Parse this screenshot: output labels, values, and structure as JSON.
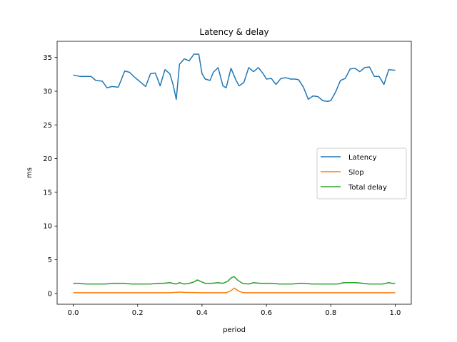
{
  "chart_data": {
    "type": "line",
    "title": "Latency & delay",
    "xlabel": "period",
    "ylabel": "ms",
    "xlim": [
      -0.05,
      1.05
    ],
    "ylim": [
      -1.6,
      37.4
    ],
    "xticks": [
      0.0,
      0.2,
      0.4,
      0.6,
      0.8,
      1.0
    ],
    "xtick_labels": [
      "0.0",
      "0.2",
      "0.4",
      "0.6",
      "0.8",
      "1.0"
    ],
    "yticks": [
      0,
      5,
      10,
      15,
      20,
      25,
      30,
      35
    ],
    "ytick_labels": [
      "0",
      "5",
      "10",
      "15",
      "20",
      "25",
      "30",
      "35"
    ],
    "grid": false,
    "legend_position": "center-right",
    "series": [
      {
        "name": "Latency",
        "color": "#1f77b4",
        "x": [
          0.0,
          0.02,
          0.04,
          0.055,
          0.07,
          0.09,
          0.105,
          0.12,
          0.14,
          0.16,
          0.175,
          0.19,
          0.21,
          0.225,
          0.24,
          0.255,
          0.27,
          0.285,
          0.3,
          0.31,
          0.32,
          0.33,
          0.345,
          0.36,
          0.375,
          0.39,
          0.4,
          0.41,
          0.425,
          0.435,
          0.45,
          0.465,
          0.475,
          0.49,
          0.505,
          0.515,
          0.53,
          0.545,
          0.56,
          0.575,
          0.59,
          0.6,
          0.615,
          0.63,
          0.645,
          0.66,
          0.675,
          0.69,
          0.7,
          0.715,
          0.73,
          0.745,
          0.76,
          0.775,
          0.79,
          0.8,
          0.815,
          0.83,
          0.845,
          0.86,
          0.875,
          0.89,
          0.905,
          0.92,
          0.935,
          0.95,
          0.965,
          0.98,
          1.0
        ],
        "y": [
          32.4,
          32.2,
          32.2,
          32.2,
          31.6,
          31.5,
          30.5,
          30.7,
          30.6,
          33.0,
          32.8,
          32.1,
          31.3,
          30.7,
          32.6,
          32.7,
          30.8,
          33.2,
          32.6,
          31.0,
          28.8,
          34.0,
          34.8,
          34.5,
          35.5,
          35.5,
          32.6,
          31.8,
          31.6,
          32.8,
          33.5,
          30.8,
          30.5,
          33.4,
          31.7,
          30.8,
          31.3,
          33.5,
          32.9,
          33.5,
          32.6,
          31.8,
          31.9,
          31.0,
          31.9,
          32.0,
          31.8,
          31.8,
          31.7,
          30.6,
          28.8,
          29.3,
          29.2,
          28.6,
          28.5,
          28.6,
          29.9,
          31.6,
          31.9,
          33.3,
          33.4,
          32.9,
          33.5,
          33.6,
          32.2,
          32.2,
          31.0,
          33.2,
          33.1
        ]
      },
      {
        "name": "Slop",
        "color": "#ff7f0e",
        "x": [
          0.0,
          0.05,
          0.1,
          0.15,
          0.2,
          0.25,
          0.3,
          0.33,
          0.35,
          0.4,
          0.45,
          0.475,
          0.49,
          0.5,
          0.515,
          0.53,
          0.6,
          0.7,
          0.8,
          0.9,
          1.0
        ],
        "y": [
          0.1,
          0.1,
          0.1,
          0.1,
          0.1,
          0.1,
          0.1,
          0.2,
          0.15,
          0.1,
          0.1,
          0.1,
          0.4,
          0.8,
          0.3,
          0.1,
          0.1,
          0.1,
          0.1,
          0.1,
          0.1
        ]
      },
      {
        "name": "Total delay",
        "color": "#2ca02c",
        "x": [
          0.0,
          0.02,
          0.04,
          0.06,
          0.08,
          0.1,
          0.12,
          0.14,
          0.16,
          0.18,
          0.2,
          0.22,
          0.24,
          0.26,
          0.28,
          0.3,
          0.32,
          0.33,
          0.345,
          0.36,
          0.375,
          0.385,
          0.395,
          0.41,
          0.43,
          0.45,
          0.465,
          0.48,
          0.49,
          0.5,
          0.51,
          0.525,
          0.545,
          0.56,
          0.58,
          0.6,
          0.62,
          0.64,
          0.66,
          0.68,
          0.7,
          0.72,
          0.74,
          0.76,
          0.78,
          0.8,
          0.82,
          0.84,
          0.86,
          0.88,
          0.9,
          0.92,
          0.94,
          0.96,
          0.98,
          0.99,
          1.0
        ],
        "y": [
          1.5,
          1.5,
          1.4,
          1.4,
          1.4,
          1.4,
          1.5,
          1.5,
          1.5,
          1.4,
          1.4,
          1.4,
          1.4,
          1.5,
          1.5,
          1.6,
          1.4,
          1.6,
          1.4,
          1.5,
          1.7,
          2.0,
          1.8,
          1.5,
          1.5,
          1.6,
          1.5,
          1.8,
          2.3,
          2.5,
          2.0,
          1.5,
          1.4,
          1.6,
          1.5,
          1.5,
          1.5,
          1.4,
          1.4,
          1.4,
          1.5,
          1.5,
          1.4,
          1.4,
          1.4,
          1.4,
          1.4,
          1.6,
          1.6,
          1.6,
          1.5,
          1.4,
          1.4,
          1.4,
          1.6,
          1.5,
          1.5
        ]
      }
    ]
  }
}
